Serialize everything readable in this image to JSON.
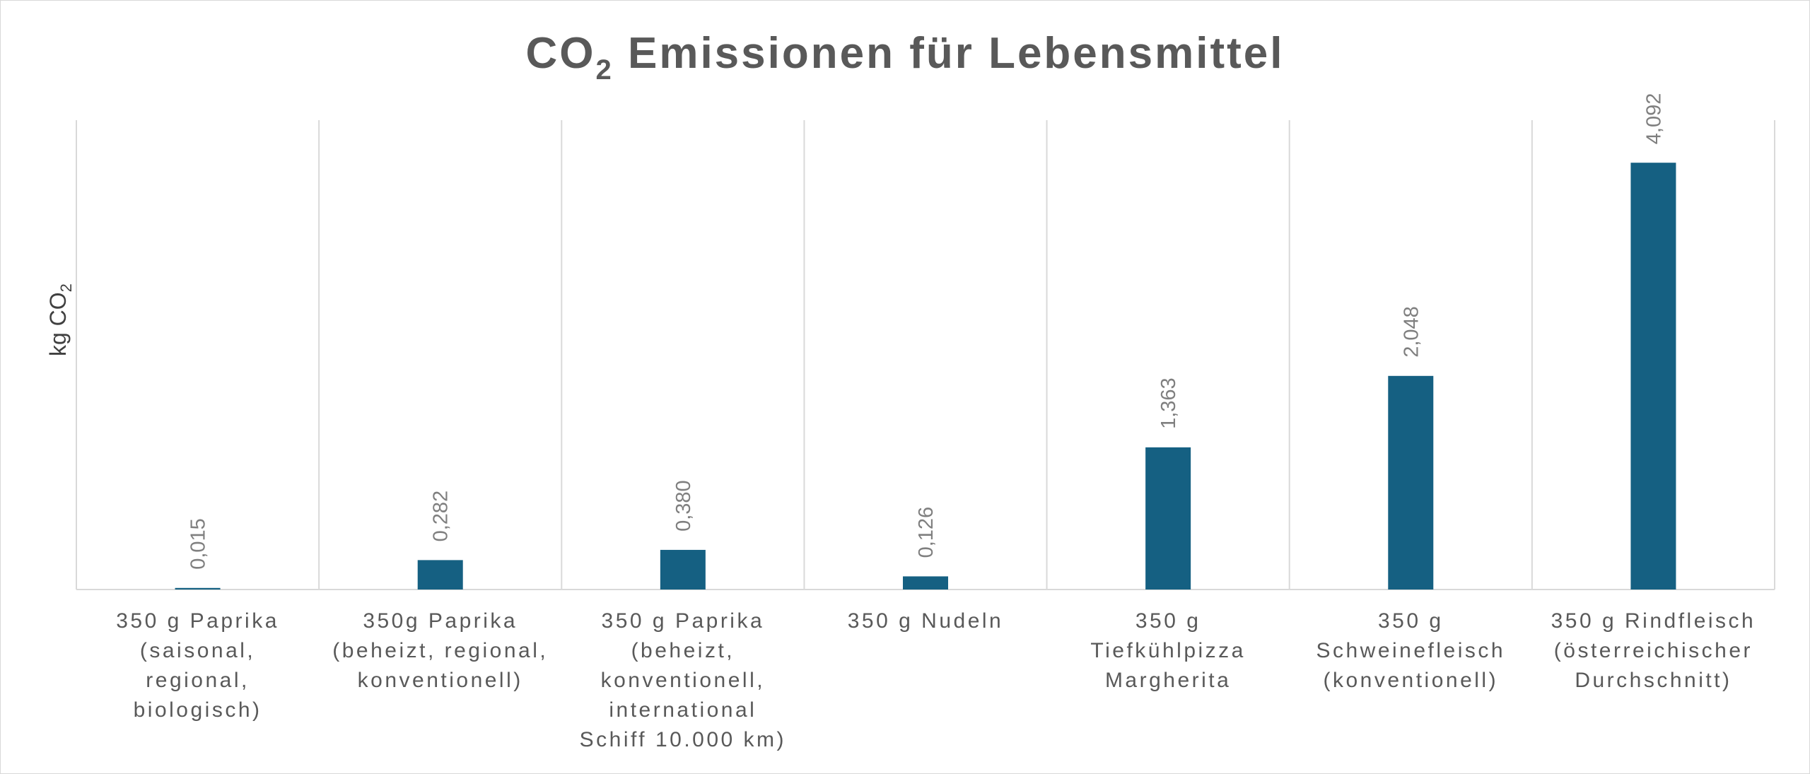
{
  "chart_data": {
    "type": "bar",
    "title": "CO2 Emissionen für Lebensmittel",
    "title_main": "CO",
    "title_subscript": "2",
    "title_rest": " Emissionen für Lebensmittel",
    "ylabel": "kg CO2",
    "ylabel_main": "kg CO",
    "ylabel_subscript": "2",
    "xlabel": "",
    "categories": [
      "350 g Paprika (saisonal, regional, biologisch)",
      "350g Paprika (beheizt, regional, konventionell)",
      "350 g Paprika (beheizt, konventionell, international Schiff 10.000 km)",
      "350 g Nudeln",
      "350 g Tiefkühlpizza Margherita",
      "350 g Schweinefleisch (konventionell)",
      "350 g Rindfleisch (österreichischer Durchschnitt)"
    ],
    "category_lines": [
      [
        "350 g Paprika",
        "(saisonal,",
        "regional,",
        "biologisch)"
      ],
      [
        "350g Paprika",
        "(beheizt, regional,",
        "konventionell)"
      ],
      [
        "350 g Paprika",
        "(beheizt,",
        "konventionell,",
        "international",
        "Schiff 10.000 km)"
      ],
      [
        "350 g Nudeln"
      ],
      [
        "350 g",
        "Tiefkühlpizza",
        "Margherita"
      ],
      [
        "350 g",
        "Schweinefleisch",
        "(konventionell)"
      ],
      [
        "350 g Rindfleisch",
        "(österreichischer",
        "Durchschnitt)"
      ]
    ],
    "values": [
      0.015,
      0.282,
      0.38,
      0.126,
      1.363,
      2.048,
      4.092
    ],
    "data_labels": [
      "0,015",
      "0,282",
      "0,380",
      "0,126",
      "1,363",
      "2,048",
      "4,092"
    ],
    "ylim": [
      0,
      4.5
    ],
    "y_axis_visible": false,
    "vertical_gridlines": true,
    "legend": "none",
    "bar_color": "#156082",
    "text_color": "#595959",
    "label_color": "#7f7f7f",
    "grid_color": "#d9d9d9"
  }
}
